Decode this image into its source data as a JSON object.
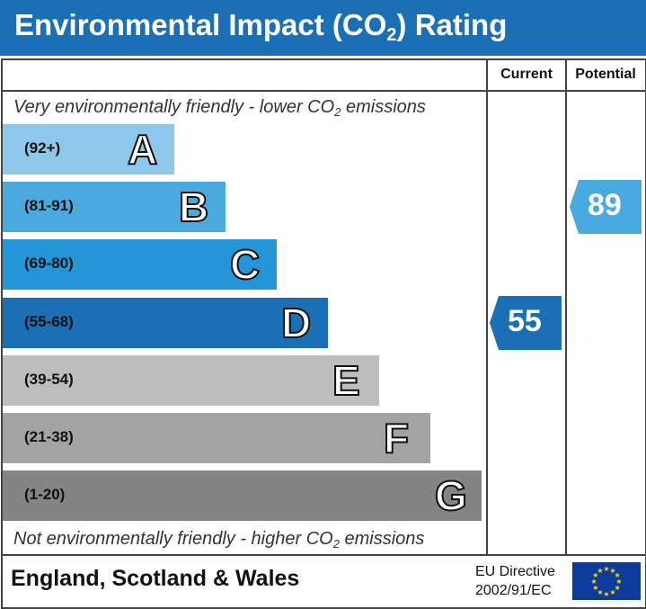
{
  "title": {
    "main": "Environmental Impact (CO",
    "sub": "2",
    "tail": ") Rating"
  },
  "columns": {
    "current": "Current",
    "potential": "Potential"
  },
  "top_caption": {
    "pre": "Very environmentally friendly - lower CO",
    "sub": "2",
    "post": " emissions"
  },
  "bottom_caption": {
    "pre": "Not environmentally friendly - higher CO",
    "sub": "2",
    "post": " emissions"
  },
  "footer": {
    "region": "England, Scotland & Wales",
    "directive_line1": "EU Directive",
    "directive_line2": "2002/91/EC"
  },
  "icons": {
    "eu_flag": "eu-flag-icon"
  },
  "chart_data": {
    "type": "bar",
    "categories": [
      "A",
      "B",
      "C",
      "D",
      "E",
      "F",
      "G"
    ],
    "ranges": [
      "(92+)",
      "(81-91)",
      "(69-80)",
      "(55-68)",
      "(39-54)",
      "(21-38)",
      "(1-20)"
    ],
    "colors": [
      "#8dc8ec",
      "#4aaae0",
      "#2496d8",
      "#1a6fb5",
      "#bdbdbd",
      "#a3a3a3",
      "#848484"
    ],
    "current": {
      "value": 55,
      "band": "D",
      "color": "#1a6fb5"
    },
    "potential": {
      "value": 89,
      "band": "B",
      "color": "#4aaae0"
    }
  }
}
